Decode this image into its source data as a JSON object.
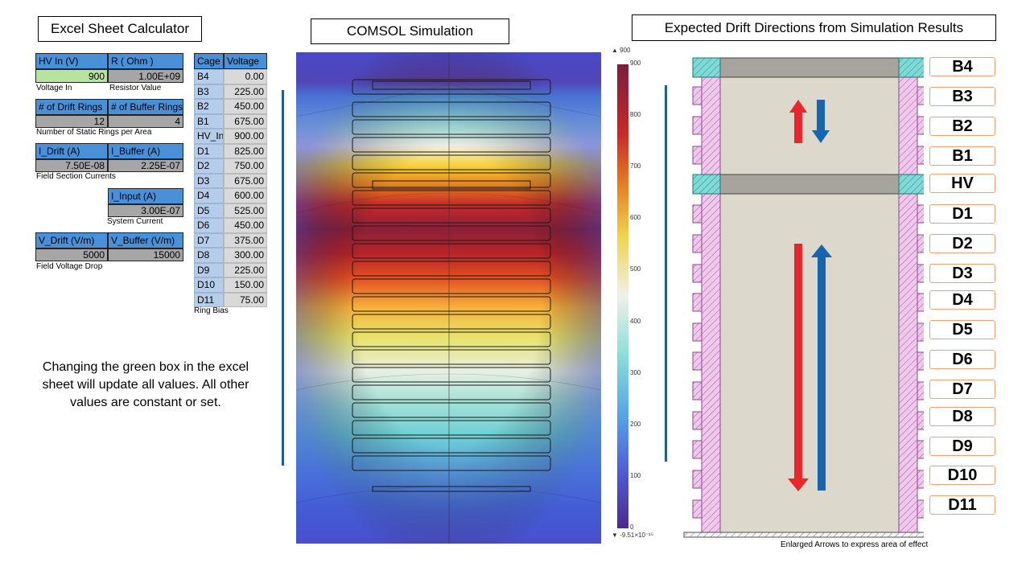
{
  "titles": {
    "calculator": "Excel Sheet Calculator",
    "simulation": "COMSOL Simulation",
    "drift": "Expected Drift Directions from Simulation Results"
  },
  "calculator": {
    "hv_in_header": "HV In (V)",
    "r_header": "R ( Ohm )",
    "hv_in_value": "900",
    "r_value": "1.00E+09",
    "voltage_in_caption": "Voltage In",
    "resistor_caption": "Resistor Value",
    "drift_rings_header": "# of Drift Rings",
    "buffer_rings_header": "# of Buffer Rings",
    "drift_rings_value": "12",
    "buffer_rings_value": "4",
    "rings_caption": "Number of Static Rings per Area",
    "i_drift_header": "I_Drift (A)",
    "i_buffer_header": "I_Buffer (A)",
    "i_drift_value": "7.50E-08",
    "i_buffer_value": "2.25E-07",
    "currents_caption": "Field Section Currents",
    "i_input_header": "I_Input (A)",
    "i_input_value": "3.00E-07",
    "system_caption": "System Current",
    "v_drift_header": "V_Drift (V/m)",
    "v_buffer_header": "V_Buffer (V/m)",
    "v_drift_value": "5000",
    "v_buffer_value": "15000",
    "drop_caption": "Field Voltage Drop"
  },
  "cage_table": {
    "header_cage": "Cage",
    "header_voltage": "Voltage",
    "rows": [
      {
        "cage": "B4",
        "voltage": "0.00"
      },
      {
        "cage": "B3",
        "voltage": "225.00"
      },
      {
        "cage": "B2",
        "voltage": "450.00"
      },
      {
        "cage": "B1",
        "voltage": "675.00"
      },
      {
        "cage": "HV_In",
        "voltage": "900.00"
      },
      {
        "cage": "D1",
        "voltage": "825.00"
      },
      {
        "cage": "D2",
        "voltage": "750.00"
      },
      {
        "cage": "D3",
        "voltage": "675.00"
      },
      {
        "cage": "D4",
        "voltage": "600.00"
      },
      {
        "cage": "D5",
        "voltage": "525.00"
      },
      {
        "cage": "D6",
        "voltage": "450.00"
      },
      {
        "cage": "D7",
        "voltage": "375.00"
      },
      {
        "cage": "D8",
        "voltage": "300.00"
      },
      {
        "cage": "D9",
        "voltage": "225.00"
      },
      {
        "cage": "D10",
        "voltage": "150.00"
      },
      {
        "cage": "D11",
        "voltage": "75.00"
      }
    ],
    "caption": "Ring Bias"
  },
  "note": "Changing the green box in the excel sheet will update all values. All other values are constant or set.",
  "colorbar": {
    "max_label": "▲ 900",
    "min_label": "▼ -9.51×10⁻¹⁵",
    "ticks": [
      "900",
      "800",
      "700",
      "600",
      "500",
      "400",
      "300",
      "200",
      "100",
      "0"
    ]
  },
  "ring_labels": [
    "B4",
    "B3",
    "B2",
    "B1",
    "HV",
    "D1",
    "D2",
    "D3",
    "D4",
    "D5",
    "D6",
    "D7",
    "D8",
    "D9",
    "D10",
    "D11"
  ],
  "drift_caption": "Enlarged Arrows to express area of effect",
  "colors": {
    "header_blue": "#4a90d9",
    "green_input": "#b7e3a0",
    "arrow_red": "#e8262b",
    "arrow_blue": "#1565b0",
    "ring_pink": "#f0c8ec"
  }
}
